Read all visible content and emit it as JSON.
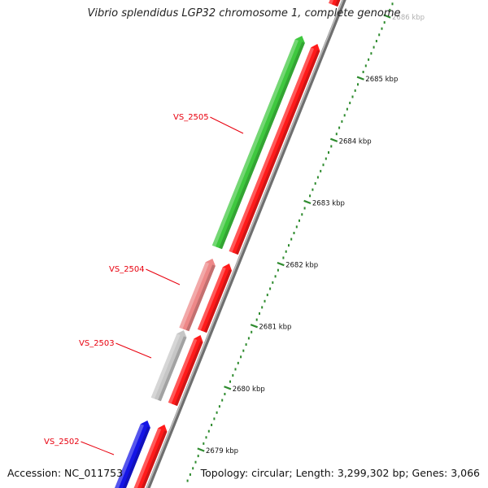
{
  "map": {
    "title": "Vibrio splendidus LGP32 chromosome 1, complete genome",
    "accession_text": "Accession: NC_011753",
    "info_text": "Topology: circular; Length: 3,299,302 bp; Genes: 3,066"
  },
  "scale": {
    "unit": "kbp",
    "ticks": [
      {
        "value": 2679,
        "label": "2679 kbp"
      },
      {
        "value": 2680,
        "label": "2680 kbp"
      },
      {
        "value": 2681,
        "label": "2681 kbp"
      },
      {
        "value": 2682,
        "label": "2682 kbp"
      },
      {
        "value": 2683,
        "label": "2683 kbp"
      },
      {
        "value": 2684,
        "label": "2684 kbp"
      },
      {
        "value": 2685,
        "label": "2685 kbp"
      },
      {
        "value": 2686,
        "label": "2686 kbp"
      }
    ]
  },
  "genes": [
    {
      "label": "VS_2502",
      "strand": "plus",
      "color": "#1515e6"
    },
    {
      "label": "VS_2503",
      "strand": "plus",
      "color": "#c6c6c6"
    },
    {
      "label": "VS_2504",
      "strand": "plus",
      "color": "#ee8888"
    },
    {
      "label": "VS_2505",
      "strand": "plus",
      "color": "#3fc83f"
    }
  ],
  "cds_color": "#ff1a1a",
  "tick_color": "#2e8b2e",
  "label_color": "#e8000e",
  "backbone_color": "#8a8a8a"
}
